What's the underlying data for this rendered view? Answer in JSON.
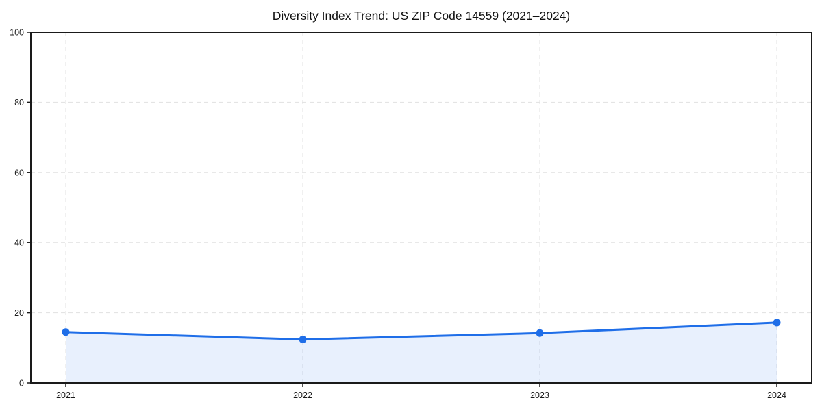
{
  "chart_data": {
    "type": "area",
    "title": "Diversity Index Trend: US ZIP Code 14559 (2021–2024)",
    "categories": [
      "2021",
      "2022",
      "2023",
      "2024"
    ],
    "series": [
      {
        "name": "Diversity Index",
        "values": [
          14.5,
          12.4,
          14.2,
          17.2
        ]
      }
    ],
    "xlabel": "",
    "ylabel": "",
    "ylim": [
      0,
      100
    ],
    "yticks": [
      0,
      20,
      40,
      60,
      80,
      100
    ],
    "grid": true,
    "legend_position": "none",
    "line_color": "#1f6ee8",
    "marker_color": "#1f6ee8",
    "fill_color": "#1f6ee8",
    "fill_opacity": 0.1,
    "marker": "circle"
  }
}
